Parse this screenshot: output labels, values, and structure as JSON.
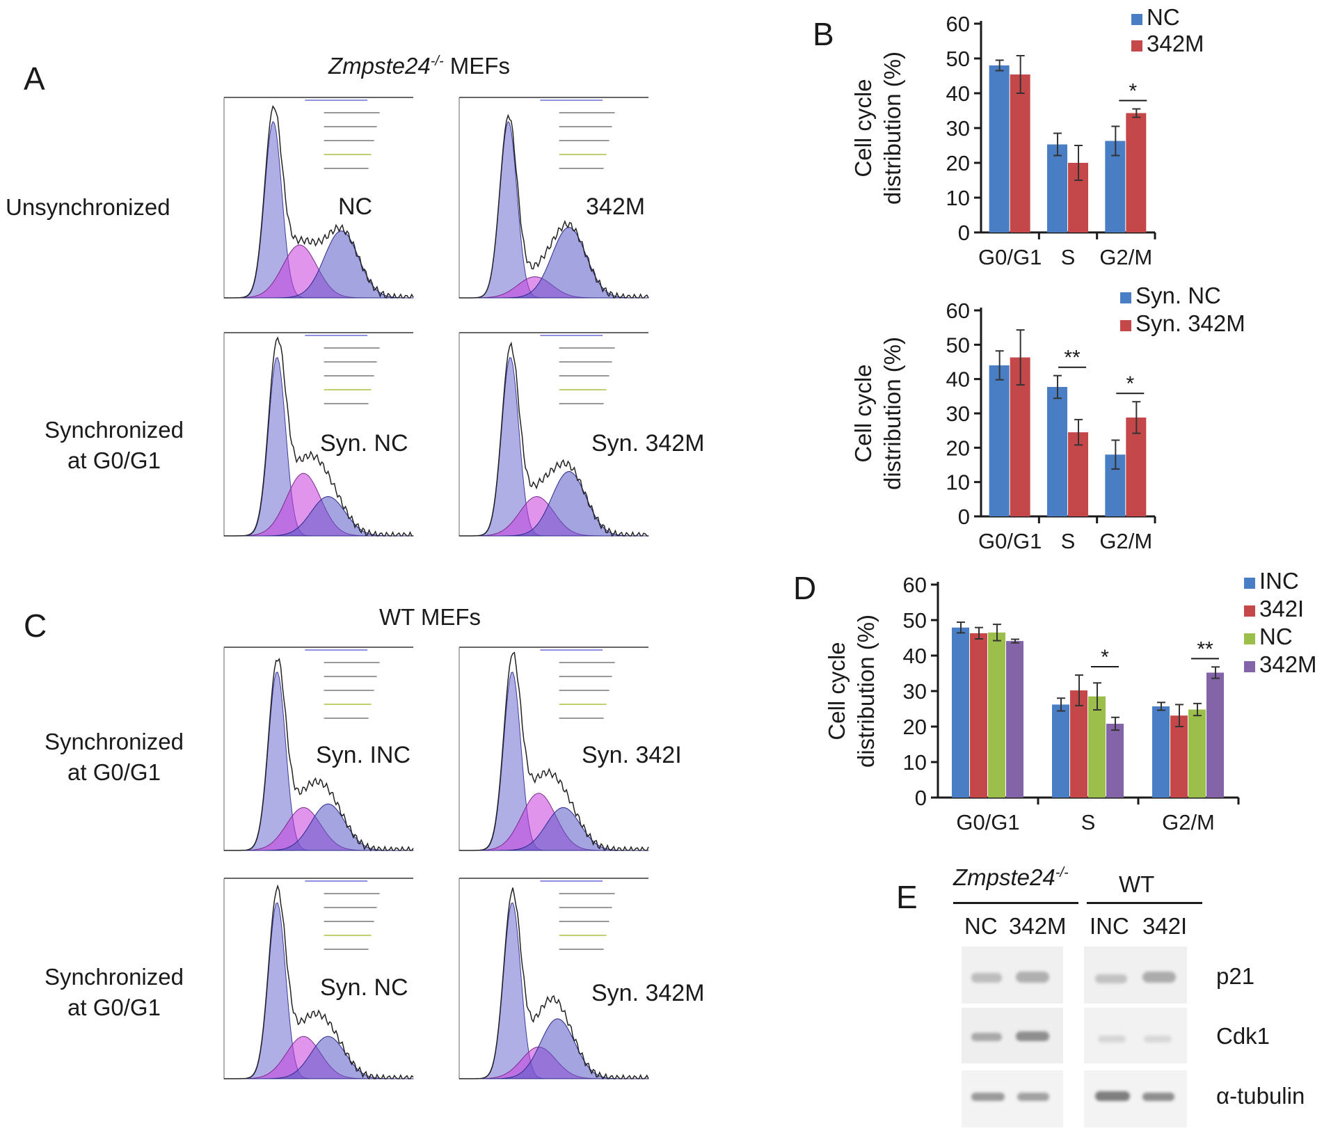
{
  "panels": {
    "A": {
      "letter": "A",
      "title_italic": "Zmpste24",
      "title_sup": "-/-",
      "title_rest": " MEFs",
      "row_labels": [
        [
          "Unsynchronized"
        ],
        [
          "Synchronized",
          "at G0/G1"
        ]
      ],
      "hist_labels": [
        "NC",
        "342M",
        "Syn. NC",
        "Syn. 342M"
      ]
    },
    "B": {
      "letter": "B"
    },
    "C": {
      "letter": "C",
      "title": "WT MEFs",
      "row_labels": [
        [
          "Synchronized",
          "at G0/G1"
        ],
        [
          "Synchronized",
          "at G0/G1"
        ]
      ],
      "hist_labels": [
        "Syn. INC",
        "Syn. 342I",
        "Syn. NC",
        "Syn. 342M"
      ]
    },
    "D": {
      "letter": "D"
    },
    "E": {
      "letter": "E",
      "group1_italic": "Zmpste24",
      "group1_sup": "-/-",
      "group2": "WT",
      "lanes": [
        "NC",
        "342M",
        "INC",
        "342I"
      ],
      "proteins": [
        "p21",
        "Cdk1",
        "α-tubulin"
      ]
    }
  },
  "colors": {
    "blue": "#4a7ec4",
    "red": "#c4484a",
    "green": "#9bbf4a",
    "purple": "#8464a8"
  },
  "chart_data": [
    {
      "id": "B-top",
      "type": "bar",
      "categories": [
        "G0/G1",
        "S",
        "G2/M"
      ],
      "ylabel_lines": [
        "Cell cycle",
        "distribution (%)"
      ],
      "ylim": [
        0,
        60
      ],
      "yticks": [
        0,
        10,
        20,
        30,
        40,
        50,
        60
      ],
      "series": [
        {
          "name": "NC",
          "color": "#4a7ec4",
          "values": [
            48,
            25.3,
            26.3
          ],
          "errors": [
            1.5,
            3.2,
            4.2
          ]
        },
        {
          "name": "342M",
          "color": "#c4484a",
          "values": [
            45.4,
            20,
            34.3
          ],
          "errors": [
            5.4,
            5,
            1.2
          ]
        }
      ],
      "significance": [
        {
          "category": 2,
          "label": "*"
        }
      ]
    },
    {
      "id": "B-bottom",
      "type": "bar",
      "categories": [
        "G0/G1",
        "S",
        "G2/M"
      ],
      "ylabel_lines": [
        "Cell cycle",
        "distribution (%)"
      ],
      "ylim": [
        0,
        60
      ],
      "yticks": [
        0,
        10,
        20,
        30,
        40,
        50,
        60
      ],
      "series": [
        {
          "name": "Syn. NC",
          "color": "#4a7ec4",
          "values": [
            44,
            37.7,
            18
          ],
          "errors": [
            4.2,
            3.3,
            4.2
          ]
        },
        {
          "name": "Syn. 342M",
          "color": "#c4484a",
          "values": [
            46.3,
            24.5,
            28.8
          ],
          "errors": [
            8,
            3.7,
            4.6
          ]
        }
      ],
      "significance": [
        {
          "category": 1,
          "label": "**"
        },
        {
          "category": 2,
          "label": "*"
        }
      ]
    },
    {
      "id": "D",
      "type": "bar",
      "categories": [
        "G0/G1",
        "S",
        "G2/M"
      ],
      "ylabel_lines": [
        "Cell cycle",
        "distribution (%)"
      ],
      "ylim": [
        0,
        60
      ],
      "yticks": [
        0,
        10,
        20,
        30,
        40,
        50,
        60
      ],
      "series": [
        {
          "name": "INC",
          "color": "#4a7ec4",
          "values": [
            47.9,
            26.2,
            25.7
          ],
          "errors": [
            1.5,
            1.8,
            1.1
          ]
        },
        {
          "name": "342I",
          "color": "#c4484a",
          "values": [
            46.3,
            30.2,
            23.1
          ],
          "errors": [
            1.6,
            4.3,
            3.1
          ]
        },
        {
          "name": "NC",
          "color": "#9bbf4a",
          "values": [
            46.5,
            28.5,
            24.8
          ],
          "errors": [
            2.3,
            3.8,
            1.7
          ]
        },
        {
          "name": "342M",
          "color": "#8464a8",
          "values": [
            44.1,
            20.8,
            35.2
          ],
          "errors": [
            0.5,
            1.8,
            1.6
          ]
        }
      ],
      "significance": [
        {
          "category": 1,
          "label": "*"
        },
        {
          "category": 2,
          "label": "**"
        }
      ]
    }
  ]
}
